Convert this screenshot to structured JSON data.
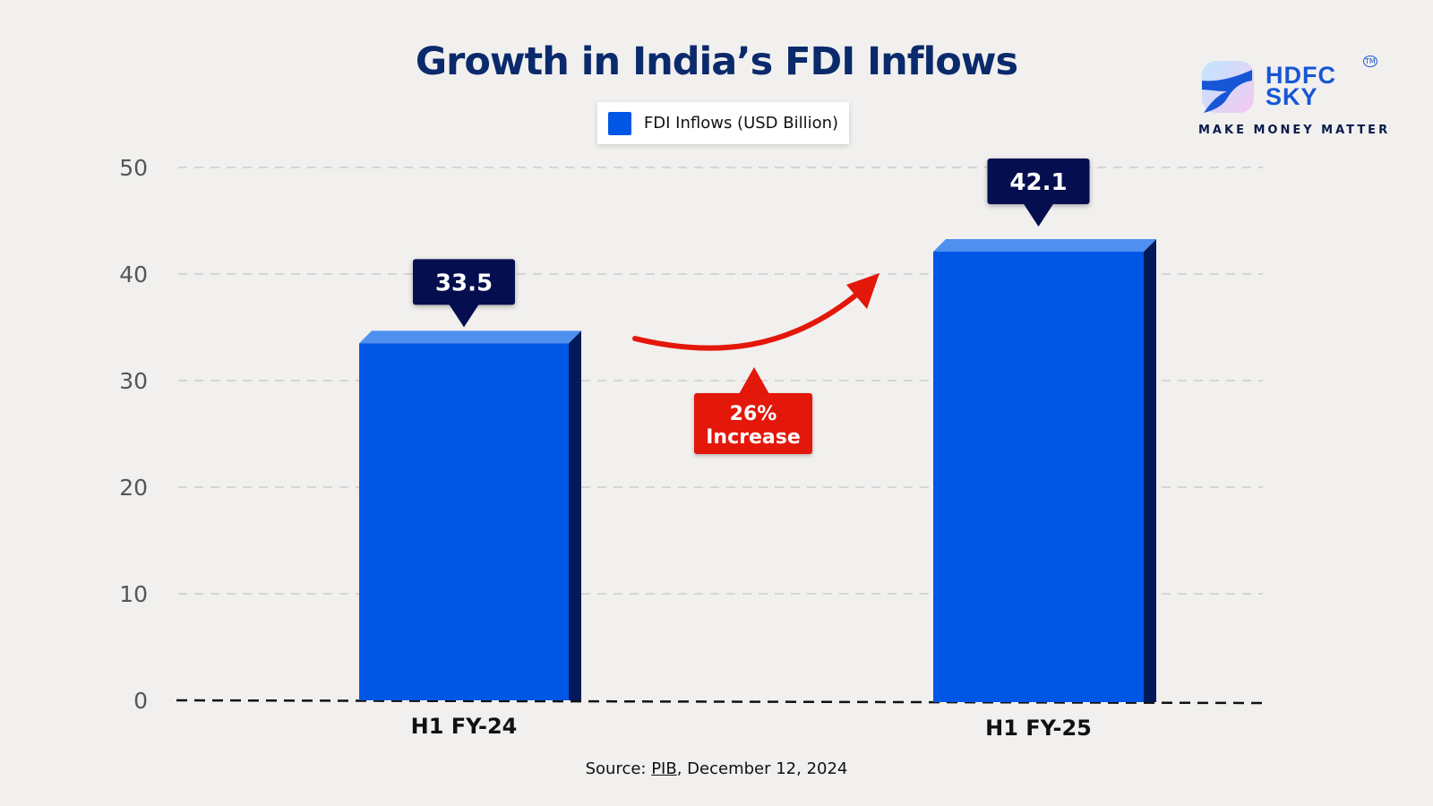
{
  "title": "Growth in India’s FDI Inflows",
  "logo": {
    "brand_line1": "HDFC",
    "brand_line2": "SKY",
    "tagline": "MAKE MONEY MATTER",
    "trademark": "TM"
  },
  "source": {
    "prefix": "Source: ",
    "link": "PIB",
    "suffix": ", December 12, 2024"
  },
  "annotation": {
    "line1": "26%",
    "line2": "Increase",
    "color": "#e3170a"
  },
  "chart_data": {
    "type": "bar",
    "title": "Growth in India’s FDI Inflows",
    "categories": [
      "H1 FY-24",
      "H1 FY-25"
    ],
    "series": [
      {
        "name": "FDI Inflows (USD Billion)",
        "values": [
          33.5,
          42.1
        ],
        "color": "#0057e6"
      }
    ],
    "data_labels": [
      "33.5",
      "42.1"
    ],
    "yticks": [
      "0",
      "10",
      "20",
      "30",
      "40",
      "50"
    ],
    "ylim": [
      0,
      50
    ],
    "grid": true,
    "legend": "top-center",
    "xlabel": "",
    "ylabel": ""
  }
}
